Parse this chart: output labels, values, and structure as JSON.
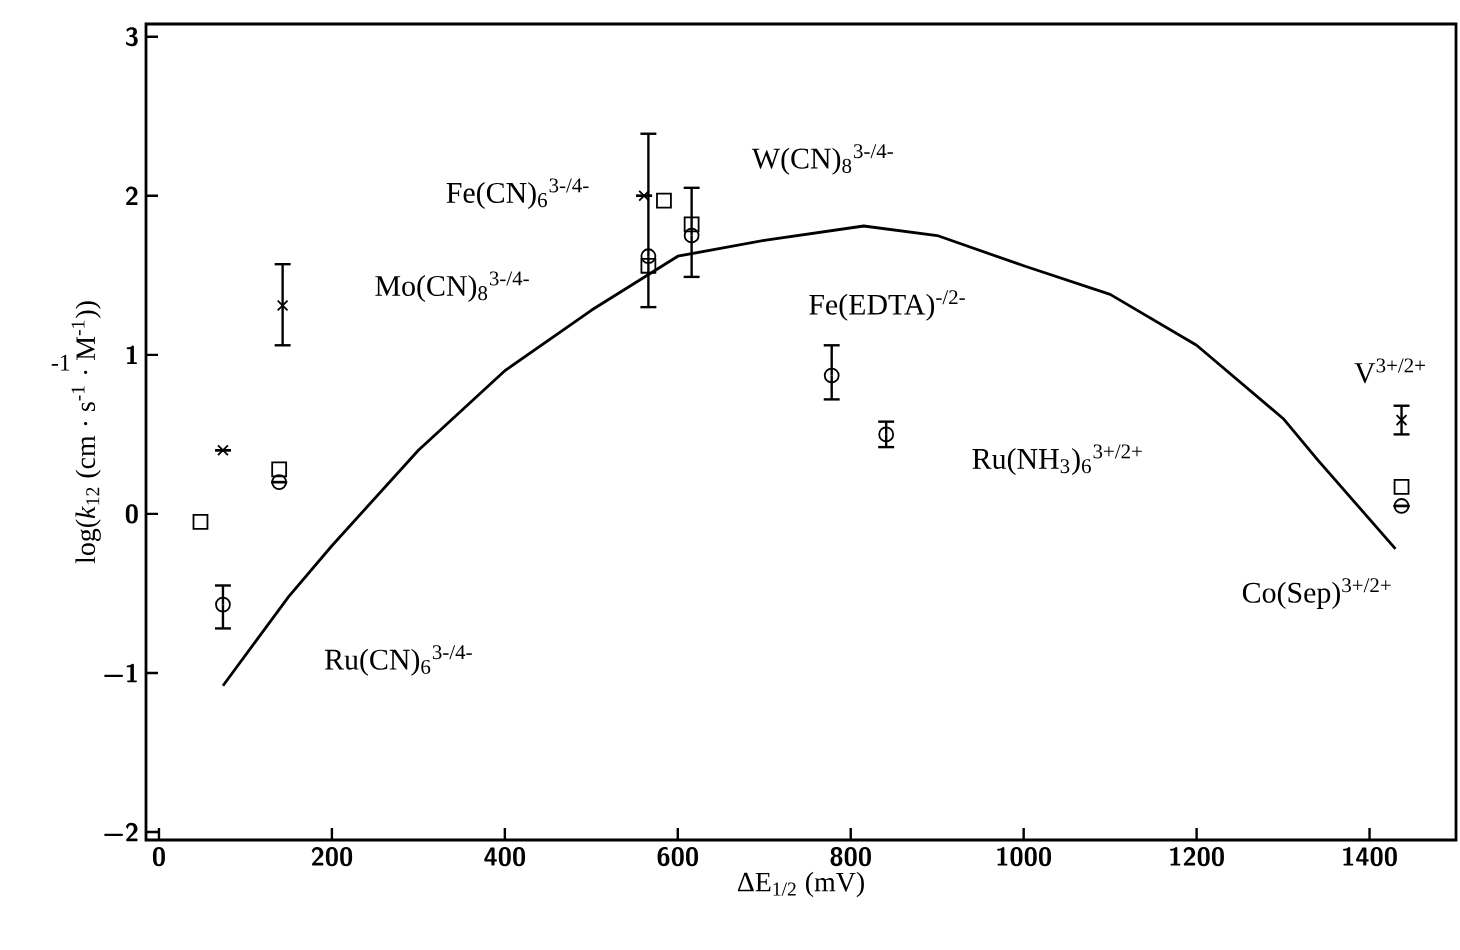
{
  "chart_data": {
    "type": "scatter",
    "xlabel": "ΔE$_{1/2}$ (mV)",
    "ylabel": "log(*k*$_{12}$ (cm · s$^{-1}$ · M$^{-1}$))",
    "xlim": [
      -15,
      1500
    ],
    "ylim": [
      -2.05,
      3.08
    ],
    "xticks": [
      0,
      200,
      400,
      600,
      800,
      1000,
      1200,
      1400
    ],
    "yticks": [
      {
        "value": -2,
        "label": "−2"
      },
      {
        "value": -1,
        "label": "−1"
      },
      0,
      1,
      2,
      3
    ],
    "grid": false,
    "series": [
      {
        "color": "#000000",
        "marker": "square",
        "x": [
          48,
          139,
          566,
          584,
          616,
          1437
        ],
        "values": [
          -0.05,
          0.28,
          1.56,
          1.97,
          1.82,
          0.17
        ]
      },
      {
        "color": "#000000",
        "marker": "circle",
        "x": [
          74,
          139,
          566,
          616,
          778,
          841,
          1437
        ],
        "values": [
          -0.57,
          0.2,
          1.62,
          1.75,
          0.87,
          0.5,
          0.05
        ],
        "errors": [
          [
            -0.72,
            -0.45
          ],
          null,
          [
            1.3,
            2.39
          ],
          [
            1.49,
            2.05
          ],
          [
            0.72,
            1.06
          ],
          [
            0.42,
            0.58
          ],
          null
        ]
      },
      {
        "color": "#000000",
        "marker": "cross",
        "x": [
          74,
          143,
          561,
          1437
        ],
        "values": [
          0.4,
          1.31,
          2.0,
          0.59
        ],
        "errors": [
          null,
          [
            1.06,
            1.57
          ],
          null,
          [
            0.5,
            0.68
          ]
        ]
      },
      {
        "type": "line",
        "color": "#000000",
        "marker": "none",
        "line_style": "solid",
        "x": [
          74,
          150,
          200,
          300,
          400,
          500,
          600,
          700,
          815,
          900,
          1000,
          1100,
          1200,
          1300,
          1340,
          1430
        ],
        "values": [
          -1.08,
          -0.52,
          -0.2,
          0.4,
          0.9,
          1.28,
          1.62,
          1.72,
          1.81,
          1.75,
          1.56,
          1.38,
          1.06,
          0.6,
          0.34,
          -0.22
        ]
      }
    ],
    "annotations": [
      "-1",
      "Fe(CN)$_{6}$$^{3-/4-}$",
      "Mo(CN)$_{8}$$^{3-/4-}$",
      "W(CN)$_{8}$$^{3-/4-}$",
      "Fe(EDTA)$^{-/2-}$",
      "Ru(NH$_{3}$)$_{6}$$^{3+/2+}$",
      "V$^{3+/2+}$",
      "Co(Sep)$^{3+/2+}$",
      "Ru(CN)$_{6}$$^{3-/4-}$"
    ]
  }
}
